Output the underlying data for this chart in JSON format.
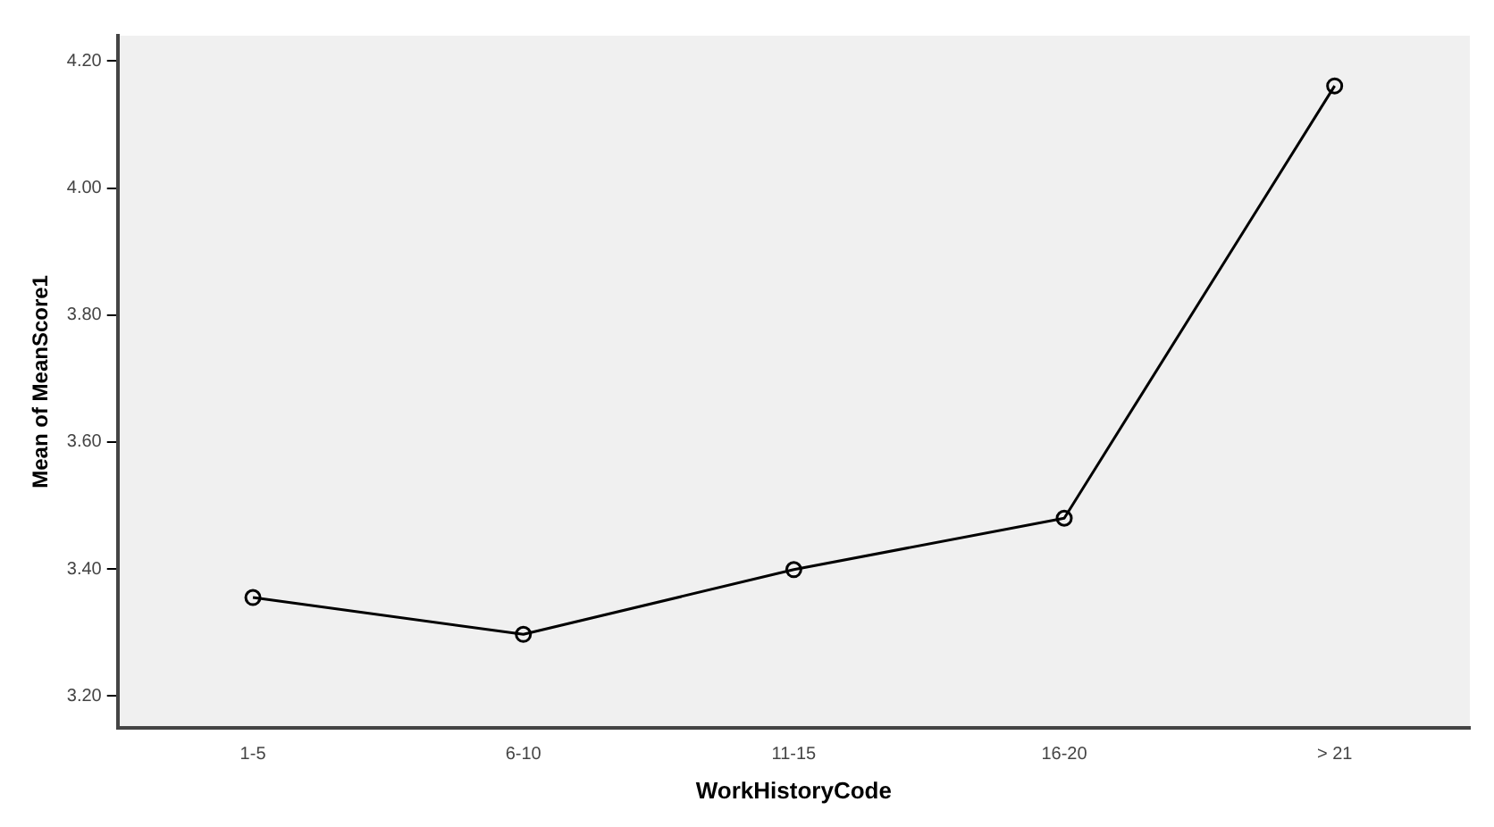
{
  "chart_data": {
    "type": "line",
    "xlabel": "WorkHistoryCode",
    "ylabel": "Mean of MeanScore1",
    "categories": [
      "1-5",
      "6-10",
      "11-15",
      "16-20",
      "> 21"
    ],
    "series": [
      {
        "color": "#000000",
        "values": [
          3.355,
          3.297,
          3.399,
          3.48,
          4.161
        ]
      }
    ],
    "ylim": [
      3.15,
      4.24
    ],
    "yticks": [
      {
        "value": 3.2,
        "label": "3.20"
      },
      {
        "value": 3.4,
        "label": "3.40"
      },
      {
        "value": 3.6,
        "label": "3.60"
      },
      {
        "value": 3.8,
        "label": "3.80"
      },
      {
        "value": 4.0,
        "label": "4.00"
      },
      {
        "value": 4.2,
        "label": "4.20"
      }
    ],
    "grid": false,
    "legend": false,
    "marker": "circle",
    "line_style": "solid"
  }
}
